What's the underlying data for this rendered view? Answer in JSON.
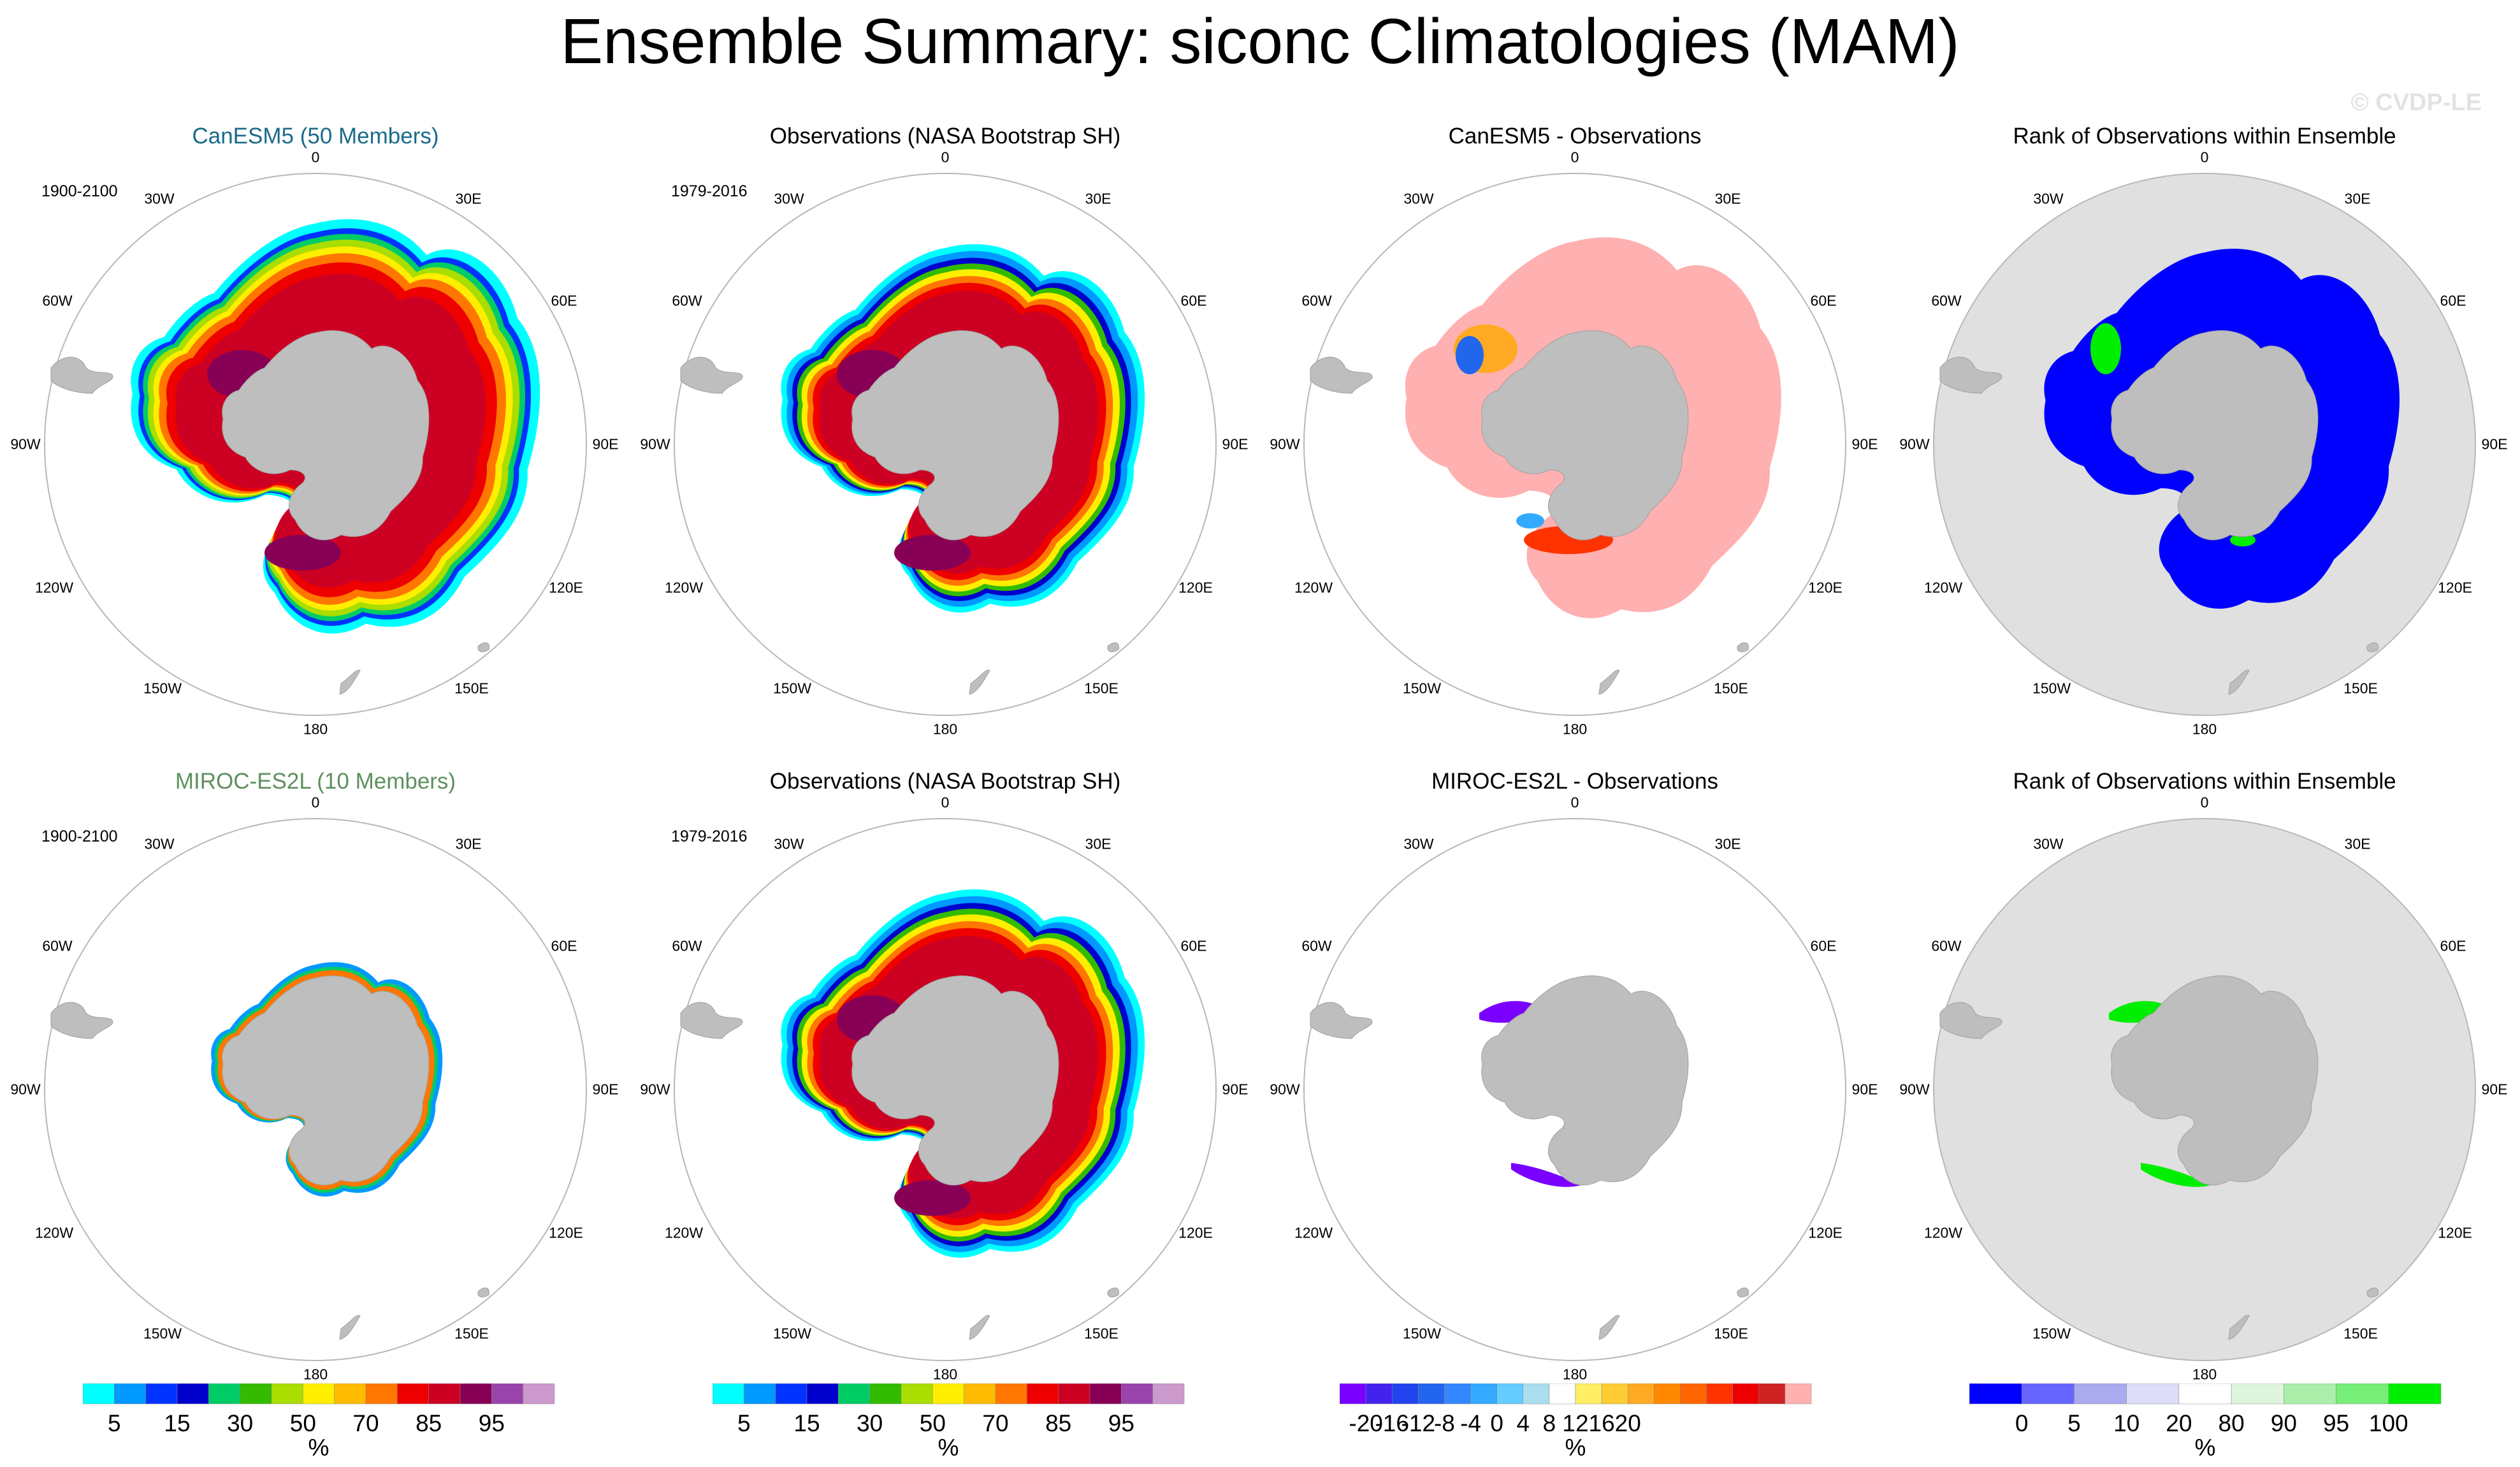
{
  "title": "Ensemble Summary: siconc Climatologies (MAM)",
  "watermark": "© CVDP-LE",
  "longitude_labels": {
    "l0": "0",
    "l30e": "30E",
    "l60e": "60E",
    "l90e": "90E",
    "l120e": "120E",
    "l150e": "150E",
    "l180": "180",
    "l150w": "150W",
    "l120w": "120W",
    "l90w": "90W",
    "l60w": "60W",
    "l30w": "30W"
  },
  "panels": [
    {
      "title": "CanESM5 (50 Members)",
      "title_color": "#1a6a8a",
      "period": "1900-2100",
      "type": "ensemble-mean"
    },
    {
      "title": "Observations (NASA Bootstrap SH)",
      "title_color": "#000000",
      "period": "1979-2016",
      "type": "observations"
    },
    {
      "title": "CanESM5 - Observations",
      "title_color": "#000000",
      "period": "",
      "type": "difference"
    },
    {
      "title": "Rank of Observations within Ensemble",
      "title_color": "#000000",
      "period": "",
      "type": "rank"
    },
    {
      "title": "MIROC-ES2L (10 Members)",
      "title_color": "#5e8f5e",
      "period": "1900-2100",
      "type": "ensemble-mean"
    },
    {
      "title": "Observations (NASA Bootstrap SH)",
      "title_color": "#000000",
      "period": "1979-2016",
      "type": "observations"
    },
    {
      "title": "MIROC-ES2L - Observations",
      "title_color": "#000000",
      "period": "",
      "type": "difference"
    },
    {
      "title": "Rank of Observations within Ensemble",
      "title_color": "#000000",
      "period": "",
      "type": "rank"
    }
  ],
  "colorbars": [
    {
      "unit": "%",
      "colors": [
        "#00ffff",
        "#0099ff",
        "#0033ff",
        "#0000cc",
        "#00cc66",
        "#33bb00",
        "#aadd00",
        "#ffee00",
        "#ffbb00",
        "#ff7700",
        "#ee0000",
        "#cc0022",
        "#880055",
        "#9944aa",
        "#cc99cc"
      ],
      "tick_labels": [
        "5",
        "15",
        "30",
        "50",
        "70",
        "85",
        "95"
      ],
      "tick_positions": [
        1,
        3,
        5,
        7,
        9,
        11,
        13
      ]
    },
    {
      "unit": "%",
      "colors": [
        "#00ffff",
        "#0099ff",
        "#0033ff",
        "#0000cc",
        "#00cc66",
        "#33bb00",
        "#aadd00",
        "#ffee00",
        "#ffbb00",
        "#ff7700",
        "#ee0000",
        "#cc0022",
        "#880055",
        "#9944aa",
        "#cc99cc"
      ],
      "tick_labels": [
        "5",
        "15",
        "30",
        "50",
        "70",
        "85",
        "95"
      ],
      "tick_positions": [
        1,
        3,
        5,
        7,
        9,
        11,
        13
      ]
    },
    {
      "unit": "%",
      "colors": [
        "#7a00ff",
        "#4422ee",
        "#2244ee",
        "#2266ee",
        "#3388ff",
        "#33aaff",
        "#66ccff",
        "#aaddee",
        "#ffffff",
        "#ffee66",
        "#ffcc33",
        "#ffaa22",
        "#ff8800",
        "#ff6600",
        "#ff3300",
        "#ee0000",
        "#cc2222",
        "#ffb0b0"
      ],
      "tick_labels": [
        "-20",
        "-16",
        "-12",
        "-8",
        "-4",
        "0",
        "4",
        "8",
        "12",
        "16",
        "20"
      ],
      "tick_positions": [
        1,
        2,
        3,
        4,
        5,
        6,
        7,
        8,
        9,
        10,
        11
      ]
    },
    {
      "unit": "%",
      "colors": [
        "#0000ff",
        "#6666ff",
        "#aaaaee",
        "#ddddf8",
        "#ffffff",
        "#ddf5dd",
        "#aaeeaa",
        "#77ee77",
        "#00ee00"
      ],
      "tick_labels": [
        "0",
        "5",
        "10",
        "20",
        "80",
        "90",
        "95",
        "100"
      ],
      "tick_positions": [
        1,
        2,
        3,
        4,
        5,
        6,
        7,
        8
      ]
    }
  ]
}
